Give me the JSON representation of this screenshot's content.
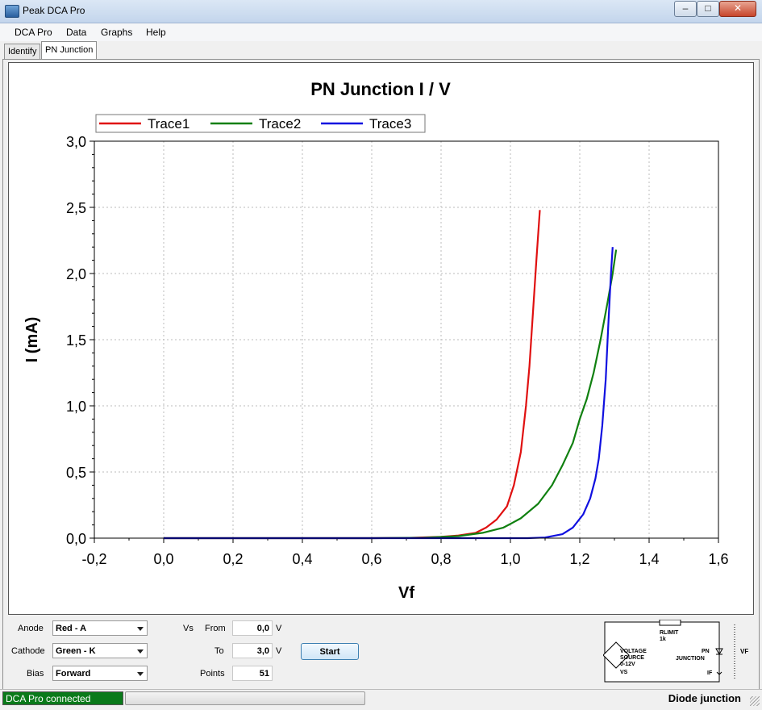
{
  "window": {
    "title": "Peak DCA Pro"
  },
  "menu": [
    "DCA Pro",
    "Data",
    "Graphs",
    "Help"
  ],
  "tabs": [
    "Identify",
    "PN Junction"
  ],
  "chart_data": {
    "type": "line",
    "title": "PN Junction I / V",
    "xlabel": "Vf",
    "ylabel": "I (mA)",
    "xlim": [
      -0.2,
      1.6
    ],
    "ylim": [
      0,
      3
    ],
    "xticks": [
      -0.2,
      0,
      0.2,
      0.4,
      0.6,
      0.8,
      1.0,
      1.2,
      1.4,
      1.6
    ],
    "yticks": [
      0,
      0.5,
      1.0,
      1.5,
      2.0,
      2.5,
      3.0
    ],
    "xtick_labels": [
      "-0,2",
      "0,0",
      "0,2",
      "0,4",
      "0,6",
      "0,8",
      "1,0",
      "1,2",
      "1,4",
      "1,6"
    ],
    "ytick_labels": [
      "0,0",
      "0,5",
      "1,0",
      "1,5",
      "2,0",
      "2,5",
      "3,0"
    ],
    "grid": true,
    "legend_position": "top-left",
    "series": [
      {
        "name": "Trace1",
        "color": "#e01010",
        "points": [
          [
            0,
            0
          ],
          [
            0.2,
            0
          ],
          [
            0.4,
            0
          ],
          [
            0.6,
            0
          ],
          [
            0.7,
            0.002
          ],
          [
            0.8,
            0.01
          ],
          [
            0.85,
            0.02
          ],
          [
            0.9,
            0.04
          ],
          [
            0.93,
            0.08
          ],
          [
            0.96,
            0.14
          ],
          [
            0.99,
            0.24
          ],
          [
            1.01,
            0.4
          ],
          [
            1.03,
            0.65
          ],
          [
            1.045,
            1.0
          ],
          [
            1.055,
            1.3
          ],
          [
            1.065,
            1.7
          ],
          [
            1.075,
            2.1
          ],
          [
            1.085,
            2.48
          ]
        ]
      },
      {
        "name": "Trace2",
        "color": "#108010",
        "points": [
          [
            0,
            0
          ],
          [
            0.2,
            0
          ],
          [
            0.4,
            0
          ],
          [
            0.6,
            0
          ],
          [
            0.75,
            0.003
          ],
          [
            0.85,
            0.015
          ],
          [
            0.92,
            0.04
          ],
          [
            0.98,
            0.08
          ],
          [
            1.03,
            0.15
          ],
          [
            1.08,
            0.26
          ],
          [
            1.12,
            0.4
          ],
          [
            1.15,
            0.55
          ],
          [
            1.18,
            0.72
          ],
          [
            1.2,
            0.9
          ],
          [
            1.22,
            1.05
          ],
          [
            1.24,
            1.25
          ],
          [
            1.26,
            1.5
          ],
          [
            1.28,
            1.78
          ],
          [
            1.295,
            2.0
          ],
          [
            1.305,
            2.18
          ]
        ]
      },
      {
        "name": "Trace3",
        "color": "#1010e0",
        "points": [
          [
            0,
            0
          ],
          [
            0.6,
            0
          ],
          [
            0.9,
            0
          ],
          [
            1.05,
            0
          ],
          [
            1.1,
            0.005
          ],
          [
            1.15,
            0.03
          ],
          [
            1.18,
            0.08
          ],
          [
            1.21,
            0.18
          ],
          [
            1.23,
            0.3
          ],
          [
            1.245,
            0.45
          ],
          [
            1.255,
            0.6
          ],
          [
            1.265,
            0.85
          ],
          [
            1.275,
            1.2
          ],
          [
            1.282,
            1.6
          ],
          [
            1.29,
            2.0
          ],
          [
            1.295,
            2.2
          ]
        ]
      }
    ]
  },
  "controls": {
    "anode_label": "Anode",
    "anode_value": "Red - A",
    "cathode_label": "Cathode",
    "cathode_value": "Green - K",
    "bias_label": "Bias",
    "bias_value": "Forward",
    "vs_label": "Vs",
    "from_label": "From",
    "from_value": "0,0",
    "to_label": "To",
    "to_value": "3,0",
    "unit_v": "V",
    "points_label": "Points",
    "points_value": "51",
    "start_label": "Start"
  },
  "schematic": {
    "rlimit": "RLIMIT",
    "rlimit_value": "1k",
    "source_line1": "VOLTAGE",
    "source_line2": "SOURCE",
    "source_line3": "0-12V",
    "vs": "VS",
    "pn_line1": "PN",
    "pn_line2": "JUNCTION",
    "if": "IF",
    "vf": "VF"
  },
  "status": {
    "connection": "DCA Pro connected",
    "mode": "Diode junction"
  }
}
